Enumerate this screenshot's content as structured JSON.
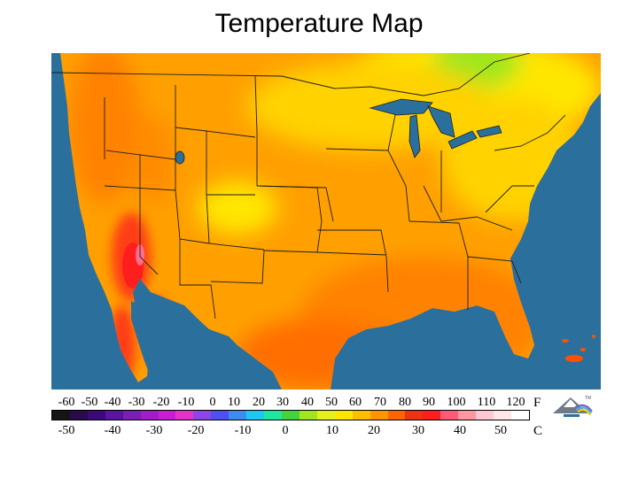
{
  "title": "Temperature Map",
  "legend": {
    "fahrenheit_unit": "F",
    "celsius_unit": "C",
    "fahrenheit_ticks": [
      "-60",
      "-50",
      "-40",
      "-30",
      "-20",
      "-10",
      "0",
      "10",
      "20",
      "30",
      "40",
      "50",
      "60",
      "70",
      "80",
      "90",
      "100",
      "110",
      "120"
    ],
    "celsius_ticks": [
      "-50",
      "-40",
      "-30",
      "-20",
      "-10",
      "0",
      "10",
      "20",
      "30",
      "40",
      "50"
    ],
    "colors": [
      "#151515",
      "#2a0a4a",
      "#3c0a78",
      "#5a14a0",
      "#7a1eb4",
      "#a01ec8",
      "#c81ed2",
      "#e632c8",
      "#8c46e6",
      "#5050f0",
      "#3c8cf0",
      "#1ec8f0",
      "#1ee6a0",
      "#46d23c",
      "#a0e61e",
      "#e6f01e",
      "#ffe600",
      "#ffbe00",
      "#ff9600",
      "#ff6400",
      "#f03214",
      "#ff1e1e",
      "#ff5a78",
      "#ff96a0",
      "#ffc8d2",
      "#ffe6eb",
      "#ffffff"
    ]
  },
  "map": {
    "ocean_color": "#2b6f9d",
    "land_base_color": "#ffa000",
    "logo_mark": "TM"
  }
}
